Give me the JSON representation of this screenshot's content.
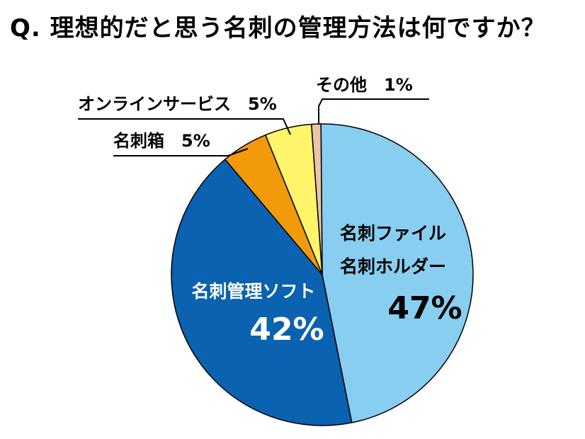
{
  "title": "Q. 理想的だと思う名刺の管理方法は何ですか？",
  "chart_data": {
    "type": "pie",
    "title": "Q. 理想的だと思う名刺の管理方法は何ですか？",
    "slices": [
      {
        "label": "名刺ファイル\n名刺ホルダー",
        "line1": "名刺ファイル",
        "line2": "名刺ホルダー",
        "value": 47,
        "pct_text": "47%",
        "color": "#87CEF0"
      },
      {
        "label": "名刺管理ソフト",
        "value": 42,
        "pct_text": "42%",
        "color": "#0A62B0"
      },
      {
        "label": "名刺箱",
        "value": 5,
        "pct_text": "5%",
        "color": "#F29A0A"
      },
      {
        "label": "オンラインサービス",
        "value": 5,
        "pct_text": "5%",
        "color": "#FFF46A"
      },
      {
        "label": "その他",
        "value": 1,
        "pct_text": "1%",
        "color": "#E9C4A8"
      }
    ],
    "outside_labels": {
      "meishi_bako": "名刺箱　5%",
      "online": "オンラインサービス　5%",
      "other": "その他　1%"
    }
  }
}
